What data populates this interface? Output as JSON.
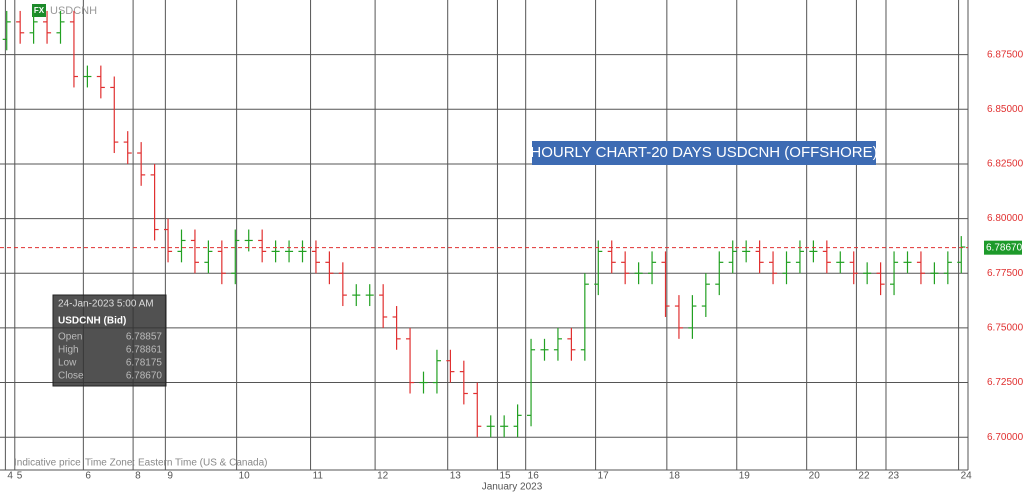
{
  "chart_data": {
    "type": "ohlc",
    "symbol": "USDCNH",
    "badge": "FX",
    "title": "HOURLY CHART-20 DAYS USDCNH (OFFSHORE)",
    "x_label": "January 2023",
    "footer_left": "Indicative price",
    "footer_timezone": "Time Zone: Eastern Time (US & Canada)",
    "up_color": "#22a022",
    "down_color": "#e03030",
    "x": [
      0.5,
      1.5,
      2.5,
      3.5,
      4.5,
      5.5,
      6.5,
      7.5,
      8.5,
      9.5,
      10.5,
      11.5,
      12.5,
      13.5,
      14.5,
      15.5,
      16.5,
      17.5,
      18.5,
      19.5,
      20.5,
      21.5,
      22.5,
      23.5,
      24.5,
      25.5,
      26.5,
      27.5,
      28.5,
      29.5,
      30.5,
      31.5,
      32.5,
      33.5,
      34.5,
      35.5,
      36.5,
      37.5,
      38.5,
      39.5,
      40.5,
      41.5,
      42.5,
      43.5,
      44.5,
      45.5,
      46.5,
      47.5,
      48.5,
      49.5,
      50.5,
      51.5,
      52.5,
      53.5,
      54.5,
      55.5,
      56.5,
      57.5,
      58.5,
      59.5,
      60.5,
      61.5,
      62.5,
      63.5,
      64.5,
      65.5,
      66.5,
      67.5,
      68.5,
      69.5,
      70.5,
      71.5
    ],
    "open": [
      6.882,
      6.89,
      6.885,
      6.89,
      6.885,
      6.89,
      6.865,
      6.865,
      6.86,
      6.835,
      6.83,
      6.82,
      6.795,
      6.785,
      6.79,
      6.78,
      6.785,
      6.775,
      6.79,
      6.79,
      6.785,
      6.785,
      6.785,
      6.785,
      6.78,
      6.775,
      6.765,
      6.765,
      6.765,
      6.755,
      6.745,
      6.725,
      6.725,
      6.735,
      6.73,
      6.72,
      6.705,
      6.705,
      6.705,
      6.71,
      6.74,
      6.74,
      6.745,
      6.74,
      6.77,
      6.785,
      6.78,
      6.775,
      6.775,
      6.78,
      6.76,
      6.75,
      6.76,
      6.77,
      6.78,
      6.785,
      6.785,
      6.78,
      6.775,
      6.78,
      6.785,
      6.785,
      6.78,
      6.78,
      6.775,
      6.775,
      6.77,
      6.78,
      6.78,
      6.775,
      6.775,
      6.78
    ],
    "high": [
      6.895,
      6.895,
      6.895,
      6.895,
      6.895,
      6.895,
      6.87,
      6.87,
      6.865,
      6.84,
      6.835,
      6.825,
      6.8,
      6.795,
      6.795,
      6.79,
      6.79,
      6.795,
      6.795,
      6.795,
      6.79,
      6.79,
      6.79,
      6.79,
      6.785,
      6.78,
      6.77,
      6.77,
      6.77,
      6.76,
      6.75,
      6.73,
      6.74,
      6.74,
      6.735,
      6.725,
      6.71,
      6.71,
      6.715,
      6.745,
      6.745,
      6.75,
      6.75,
      6.775,
      6.79,
      6.79,
      6.785,
      6.78,
      6.785,
      6.785,
      6.765,
      6.765,
      6.775,
      6.785,
      6.79,
      6.79,
      6.79,
      6.785,
      6.785,
      6.79,
      6.79,
      6.79,
      6.785,
      6.785,
      6.78,
      6.78,
      6.785,
      6.785,
      6.785,
      6.78,
      6.785,
      6.792
    ],
    "low": [
      6.877,
      6.88,
      6.88,
      6.88,
      6.88,
      6.86,
      6.86,
      6.855,
      6.83,
      6.825,
      6.815,
      6.79,
      6.78,
      6.78,
      6.775,
      6.775,
      6.77,
      6.77,
      6.785,
      6.78,
      6.78,
      6.78,
      6.78,
      6.775,
      6.77,
      6.76,
      6.76,
      6.76,
      6.75,
      6.74,
      6.72,
      6.72,
      6.72,
      6.725,
      6.715,
      6.7,
      6.7,
      6.7,
      6.7,
      6.705,
      6.735,
      6.735,
      6.735,
      6.735,
      6.765,
      6.775,
      6.77,
      6.77,
      6.77,
      6.755,
      6.745,
      6.745,
      6.755,
      6.765,
      6.775,
      6.78,
      6.775,
      6.77,
      6.77,
      6.775,
      6.78,
      6.775,
      6.775,
      6.77,
      6.77,
      6.765,
      6.765,
      6.775,
      6.77,
      6.77,
      6.77,
      6.775
    ],
    "close": [
      6.89,
      6.885,
      6.89,
      6.885,
      6.89,
      6.865,
      6.865,
      6.86,
      6.835,
      6.83,
      6.82,
      6.795,
      6.785,
      6.79,
      6.78,
      6.785,
      6.775,
      6.79,
      6.79,
      6.785,
      6.785,
      6.785,
      6.785,
      6.78,
      6.775,
      6.765,
      6.765,
      6.765,
      6.755,
      6.745,
      6.725,
      6.725,
      6.735,
      6.73,
      6.72,
      6.705,
      6.705,
      6.705,
      6.71,
      6.74,
      6.74,
      6.745,
      6.74,
      6.77,
      6.785,
      6.78,
      6.775,
      6.775,
      6.78,
      6.76,
      6.75,
      6.76,
      6.77,
      6.78,
      6.785,
      6.785,
      6.78,
      6.775,
      6.78,
      6.785,
      6.785,
      6.78,
      6.78,
      6.775,
      6.775,
      6.77,
      6.78,
      6.78,
      6.775,
      6.775,
      6.78,
      6.787
    ],
    "xlim": [
      0,
      72
    ],
    "xticks": [
      {
        "value": 0.4,
        "label": "4"
      },
      {
        "value": 1.1,
        "label": "5"
      },
      {
        "value": 6.2,
        "label": "6"
      },
      {
        "value": 9.9,
        "label": "8"
      },
      {
        "value": 12.3,
        "label": "9"
      },
      {
        "value": 17.6,
        "label": "10"
      },
      {
        "value": 23.1,
        "label": "11"
      },
      {
        "value": 27.9,
        "label": "12"
      },
      {
        "value": 33.3,
        "label": "13"
      },
      {
        "value": 37,
        "label": "15"
      },
      {
        "value": 39.1,
        "label": "16"
      },
      {
        "value": 44.3,
        "label": "17"
      },
      {
        "value": 49.6,
        "label": "18"
      },
      {
        "value": 54.8,
        "label": "19"
      },
      {
        "value": 60,
        "label": "20"
      },
      {
        "value": 63.7,
        "label": "22"
      },
      {
        "value": 65.9,
        "label": "23"
      },
      {
        "value": 71.3,
        "label": "24"
      }
    ],
    "ylim": [
      6.685,
      6.9
    ],
    "yticks": [
      {
        "value": 6.7,
        "label": "6.70000"
      },
      {
        "value": 6.725,
        "label": "6.72500"
      },
      {
        "value": 6.75,
        "label": "6.75000"
      },
      {
        "value": 6.775,
        "label": "6.77500"
      },
      {
        "value": 6.8,
        "label": "6.80000"
      },
      {
        "value": 6.825,
        "label": "6.82500"
      },
      {
        "value": 6.85,
        "label": "6.85000"
      },
      {
        "value": 6.875,
        "label": "6.87500"
      }
    ],
    "last_price": 6.7867,
    "last_price_label": "6.78670",
    "tooltip": {
      "date": "24-Jan-2023 5:00 AM",
      "symbol": "USDCNH (Bid)",
      "rows": [
        {
          "label": "Open",
          "value": "6.78857"
        },
        {
          "label": "High",
          "value": "6.78861"
        },
        {
          "label": "Low",
          "value": "6.78175"
        },
        {
          "label": "Close",
          "value": "6.78670"
        }
      ]
    }
  }
}
